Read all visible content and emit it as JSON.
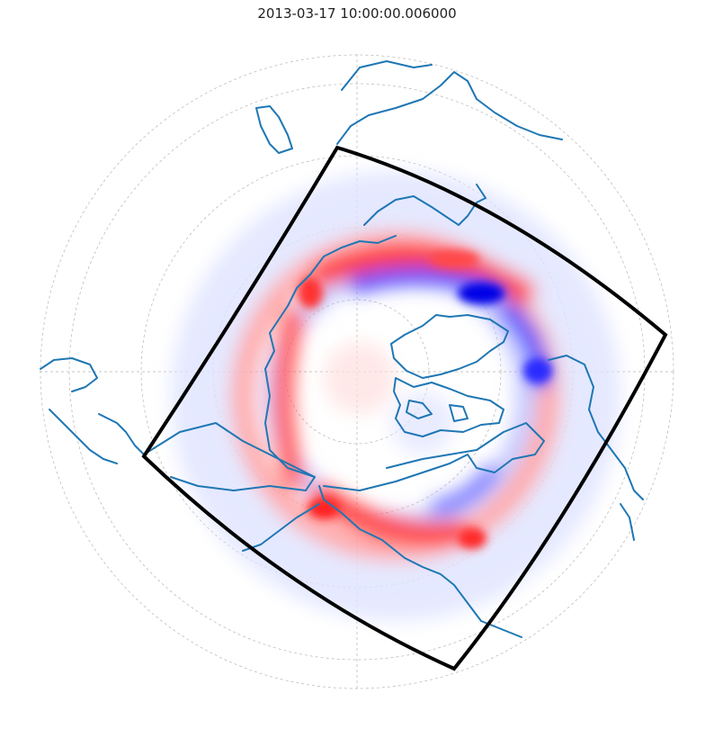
{
  "figure": {
    "title": "2013-03-17 10:00:00.006000"
  },
  "map": {
    "projection": "north-polar-stereographic",
    "coastline_color": "#1f77b4",
    "boundary_color": "#000000",
    "graticule_color": "#b0b0b0",
    "colormap": {
      "positive": "#ff0000",
      "negative": "#0000ff",
      "zero": "#ffffff"
    }
  }
}
